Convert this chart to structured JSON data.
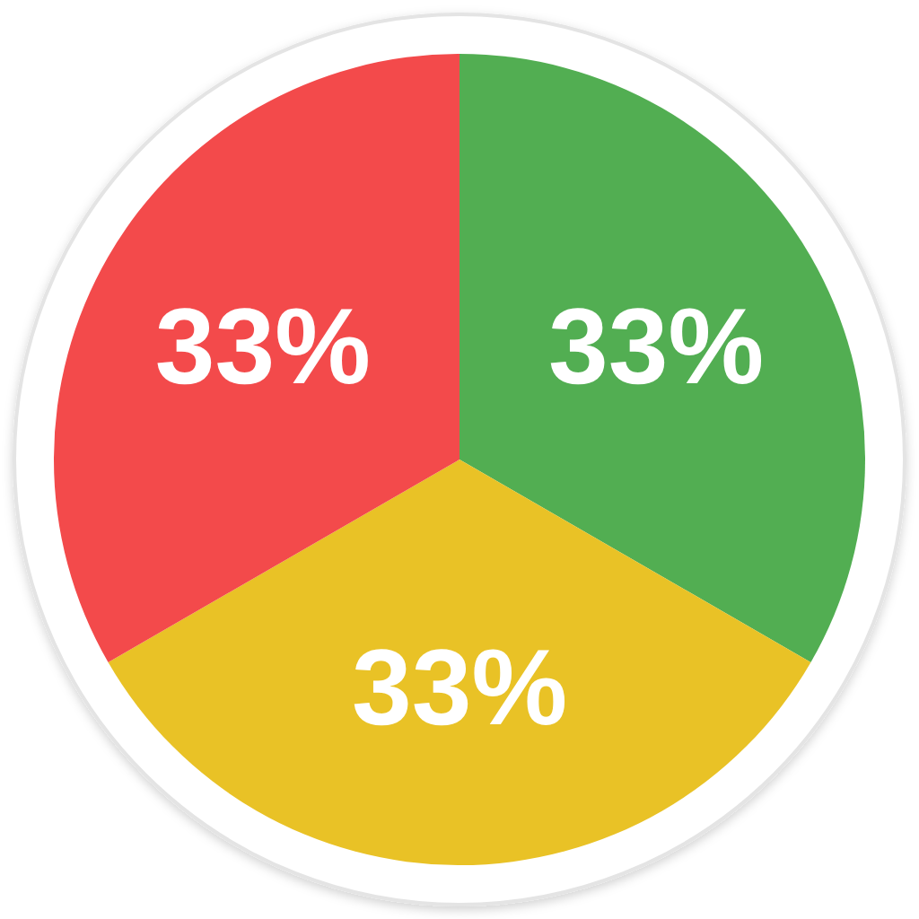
{
  "chart_data": {
    "type": "pie",
    "categories": [
      null,
      null,
      null
    ],
    "values": [
      33,
      33,
      33
    ],
    "colors": [
      "#52ae52",
      "#e9c226",
      "#f34a4b"
    ],
    "value_labels": [
      "33%",
      "33%",
      "33%"
    ]
  }
}
